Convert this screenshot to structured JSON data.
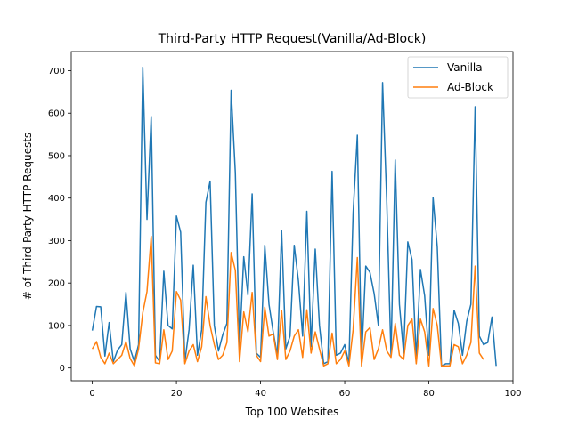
{
  "chart_data": {
    "type": "line",
    "title": "Third-Party HTTP Request(Vanilla/Ad-Block)",
    "xlabel": "Top 100 Websites",
    "ylabel": "# of Third-Party HTTP Requests",
    "xlim": [
      -5,
      100
    ],
    "ylim": [
      -30,
      745
    ],
    "xticks": [
      0,
      20,
      40,
      60,
      80,
      100
    ],
    "yticks": [
      0,
      100,
      200,
      300,
      400,
      500,
      600,
      700
    ],
    "legend_position": "top-right",
    "grid": false,
    "series": [
      {
        "name": "Vanilla",
        "color": "#1f77b4",
        "values": [
          88,
          145,
          144,
          28,
          107,
          15,
          42,
          55,
          178,
          45,
          15,
          55,
          708,
          350,
          592,
          30,
          15,
          228,
          100,
          92,
          358,
          320,
          15,
          90,
          242,
          30,
          90,
          390,
          440,
          100,
          40,
          78,
          105,
          654,
          460,
          50,
          262,
          172,
          410,
          35,
          25,
          289,
          150,
          85,
          30,
          324,
          45,
          75,
          289,
          205,
          75,
          369,
          50,
          280,
          100,
          10,
          15,
          463,
          30,
          35,
          55,
          10,
          365,
          548,
          20,
          240,
          225,
          175,
          100,
          672,
          390,
          30,
          490,
          150,
          35,
          297,
          255,
          22,
          232,
          170,
          30,
          401,
          285,
          5,
          10,
          10,
          136,
          105,
          30,
          110,
          150,
          615,
          75,
          55,
          60,
          120,
          5
        ]
      },
      {
        "name": "Ad-Block",
        "color": "#ff7f0e",
        "values": [
          45,
          62,
          25,
          10,
          35,
          10,
          20,
          30,
          62,
          22,
          5,
          45,
          130,
          180,
          310,
          12,
          10,
          90,
          20,
          40,
          180,
          160,
          10,
          40,
          55,
          15,
          50,
          168,
          100,
          55,
          20,
          30,
          60,
          272,
          230,
          15,
          132,
          85,
          178,
          30,
          15,
          143,
          75,
          80,
          20,
          136,
          20,
          40,
          75,
          90,
          25,
          137,
          35,
          85,
          45,
          5,
          10,
          82,
          10,
          20,
          40,
          5,
          90,
          260,
          5,
          85,
          95,
          20,
          45,
          90,
          40,
          25,
          105,
          30,
          20,
          100,
          115,
          10,
          115,
          85,
          5,
          140,
          100,
          5,
          5,
          5,
          55,
          50,
          10,
          30,
          60,
          240,
          35,
          20
        ],
        "x_start": 0
      }
    ]
  }
}
